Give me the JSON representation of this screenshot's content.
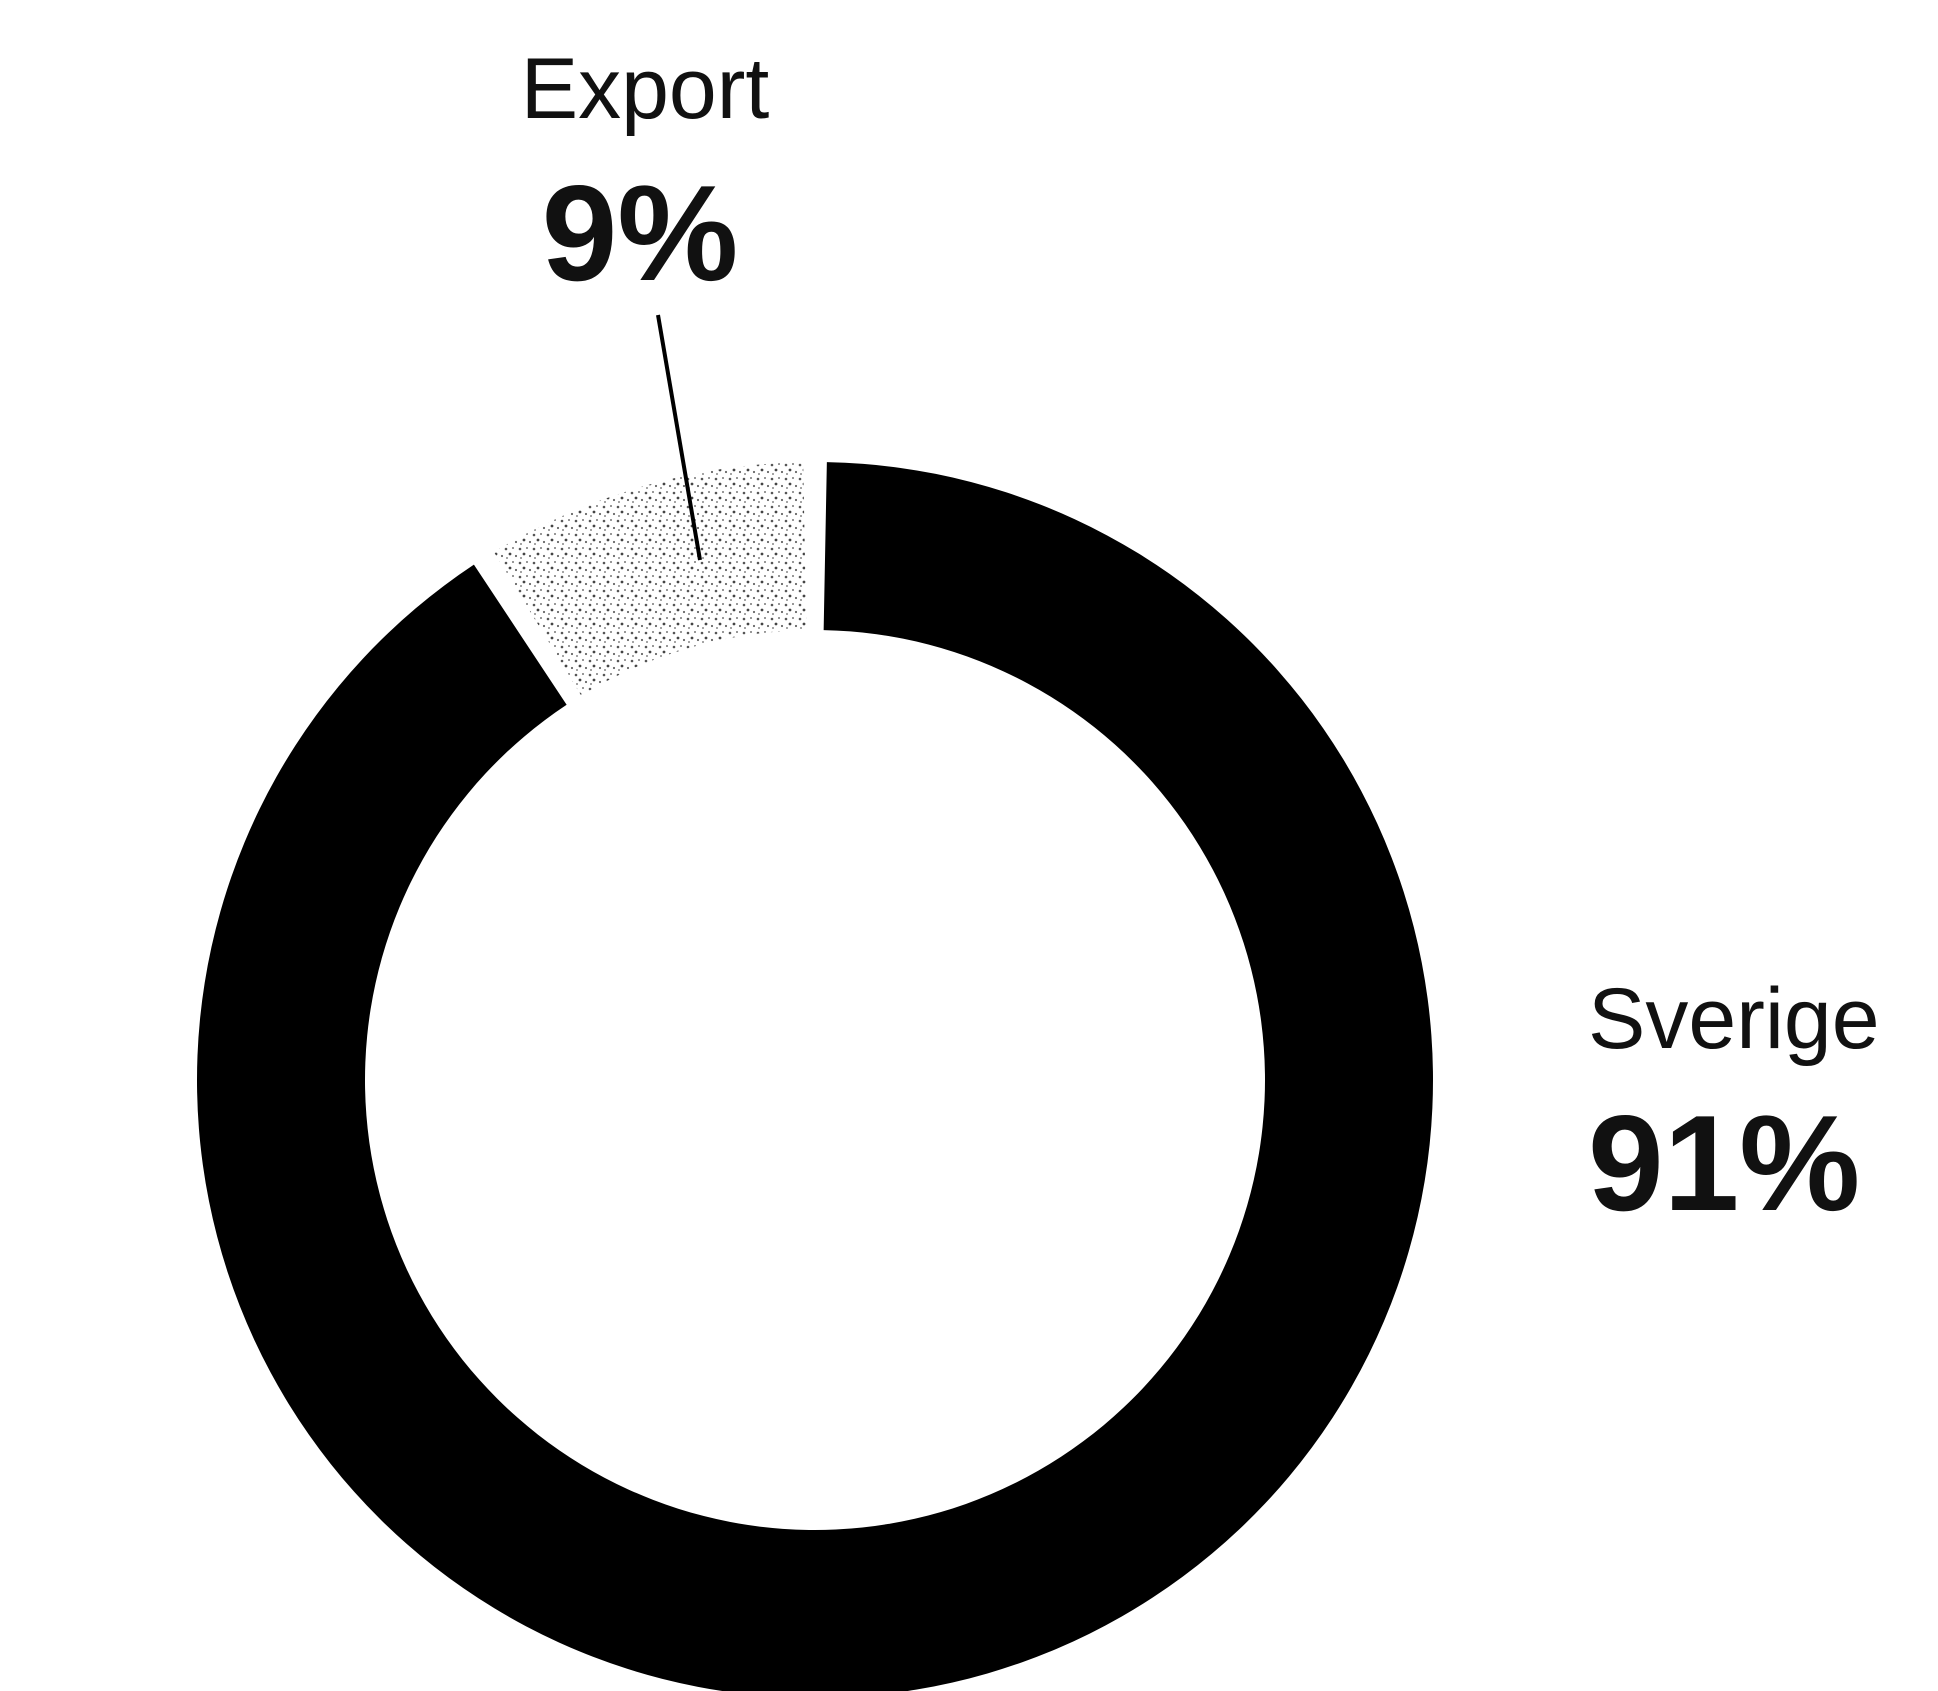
{
  "chart_data": {
    "type": "pie",
    "variant": "donut",
    "slices": [
      {
        "label": "Sverige",
        "value": 91,
        "value_label": "91%",
        "color": "#000000",
        "fill": "solid"
      },
      {
        "label": "Export",
        "value": 9,
        "value_label": "9%",
        "color": "#bdbdbd",
        "fill": "stippled"
      }
    ],
    "title": "",
    "start_angle": "top",
    "direction": "clockwise"
  }
}
